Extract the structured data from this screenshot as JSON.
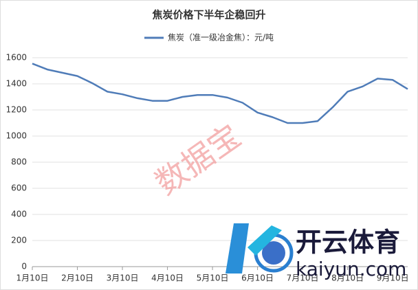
{
  "chart_data": {
    "type": "line",
    "title": "焦炭价格下半年企稳回升",
    "categories": [
      "1月10日",
      null,
      null,
      "2月10日",
      null,
      null,
      "3月10日",
      null,
      null,
      "4月10日",
      null,
      null,
      "5月10日",
      null,
      null,
      "6月10日",
      null,
      null,
      "7月10日",
      null,
      null,
      "8月10日",
      null,
      null,
      "9月10日",
      null
    ],
    "series": [
      {
        "name": "焦炭（准一级冶金焦）：元/吨",
        "color": "#4f7cb8",
        "values": [
          1555,
          1510,
          1485,
          1460,
          1405,
          1340,
          1320,
          1290,
          1270,
          1270,
          1300,
          1315,
          1315,
          1295,
          1255,
          1180,
          1145,
          1100,
          1100,
          1115,
          1220,
          1340,
          1380,
          1440,
          1430,
          1360
        ]
      }
    ],
    "ylim": [
      0,
      1600
    ],
    "yticks": [
      0,
      200,
      400,
      600,
      800,
      1000,
      1200,
      1400,
      1600
    ],
    "grid": true,
    "legend": "top",
    "annotations": [
      "数据宝",
      "开云体育",
      "kaiyun.com"
    ]
  }
}
